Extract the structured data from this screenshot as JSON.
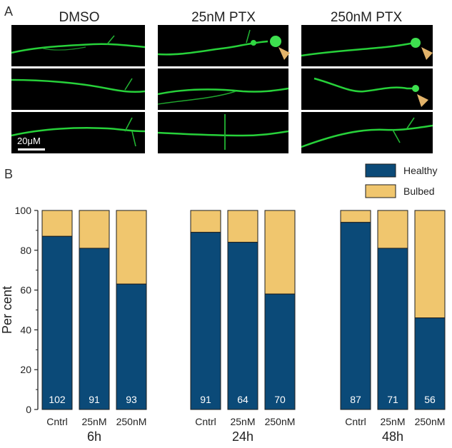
{
  "panel_a": {
    "label": "A",
    "columns": [
      "DMSO",
      "25nM PTX",
      "250nM PTX"
    ],
    "scale_bar": "20μM"
  },
  "panel_b": {
    "label": "B"
  },
  "chart_data": {
    "type": "bar",
    "stacked": true,
    "ylabel": "Per cent",
    "ylim": [
      0,
      100
    ],
    "yticks": [
      0,
      20,
      40,
      60,
      80,
      100
    ],
    "groups": [
      "6h",
      "24h",
      "48h"
    ],
    "categories": [
      "Cntrl",
      "25nM",
      "250nM",
      "Cntrl",
      "25nM",
      "250nM",
      "Cntrl",
      "25nM",
      "250nM"
    ],
    "counts": [
      "102",
      "91",
      "93",
      "91",
      "64",
      "70",
      "87",
      "71",
      "56"
    ],
    "series": [
      {
        "name": "Healthy",
        "color": "#0b4a78",
        "values": [
          87,
          81,
          63,
          89,
          84,
          58,
          94,
          81,
          46
        ]
      },
      {
        "name": "Bulbed",
        "color": "#f0c66e",
        "values": [
          13,
          19,
          37,
          11,
          16,
          42,
          6,
          19,
          54
        ]
      }
    ],
    "legend": "top-right"
  }
}
